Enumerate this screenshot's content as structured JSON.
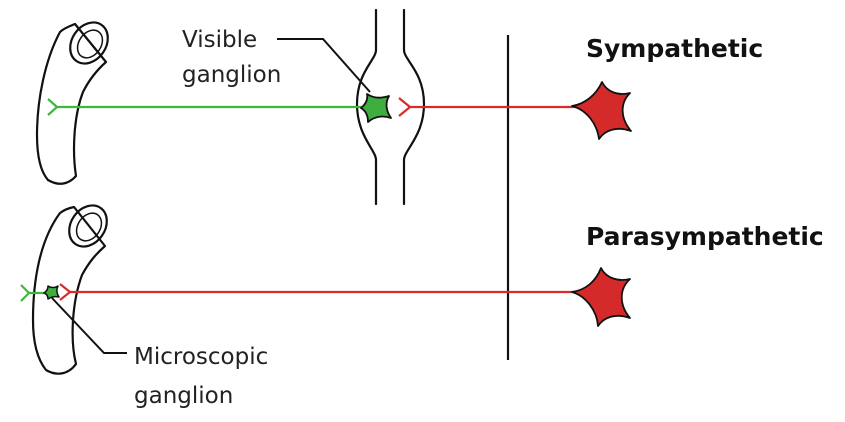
{
  "labels": {
    "sympathetic": "Sympathetic",
    "parasympathetic": "Parasympathetic",
    "visible_ganglion_line1": "Visible",
    "visible_ganglion_line2": "ganglion",
    "microscopic_ganglion_line1": "Microscopic",
    "microscopic_ganglion_line2": "ganglion"
  },
  "colors": {
    "preganglionic_fiber": "#3db83d",
    "postganglionic_fiber": "#d92b2b",
    "neuron_fill": "#d42a2a",
    "ganglion_cell_fill": "#3fae3f",
    "vessel_fill": "#d4ad9b",
    "outline": "#111111"
  }
}
